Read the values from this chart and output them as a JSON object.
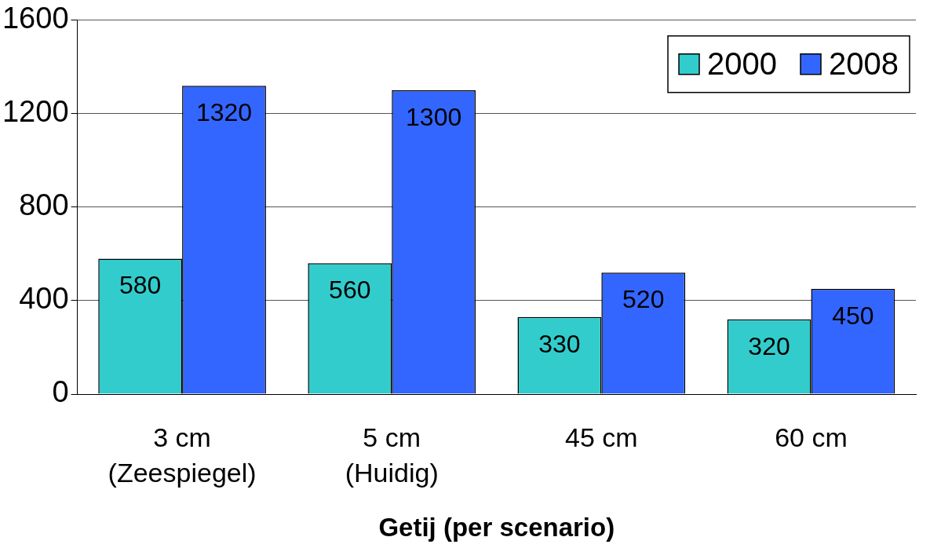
{
  "chart_data": {
    "type": "bar",
    "xlabel": "Getij (per scenario)",
    "categories": [
      "3 cm\n(Zeespiegel)",
      "5 cm\n(Huidig)",
      "45 cm",
      "60 cm"
    ],
    "series": [
      {
        "name": "2000",
        "color": "#33cccc",
        "values": [
          580,
          560,
          330,
          320
        ]
      },
      {
        "name": "2008",
        "color": "#3366ff",
        "values": [
          1320,
          1300,
          520,
          450
        ]
      }
    ],
    "ylim": [
      0,
      1600
    ],
    "yticks": [
      0,
      400,
      800,
      1200,
      1600
    ],
    "grid": "y",
    "legend": "top right",
    "data_labels": true
  }
}
